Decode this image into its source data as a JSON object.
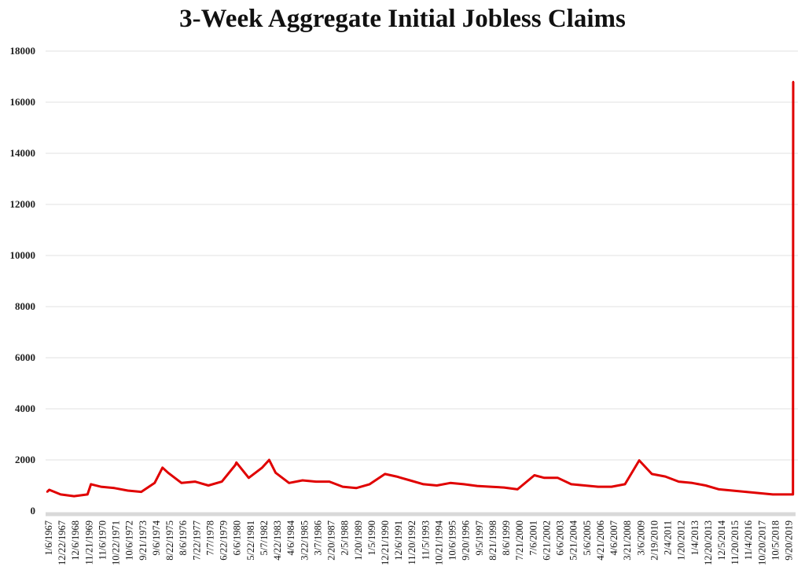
{
  "chart_data": {
    "type": "line",
    "title": "3-Week Aggregate Initial Jobless Claims",
    "xlabel": "",
    "ylabel": "",
    "ylim": [
      0,
      18000
    ],
    "yticks": [
      0,
      2000,
      4000,
      6000,
      8000,
      10000,
      12000,
      14000,
      16000,
      18000
    ],
    "grid": true,
    "legend": "none",
    "line_color": "#e00000",
    "xtick_labels": [
      "1/6/1967",
      "12/22/1967",
      "12/6/1968",
      "11/21/1969",
      "11/6/1970",
      "10/22/1971",
      "10/6/1972",
      "9/21/1973",
      "9/6/1974",
      "8/22/1975",
      "8/6/1976",
      "7/22/1977",
      "7/7/1978",
      "6/22/1979",
      "6/6/1980",
      "5/22/1981",
      "5/7/1982",
      "4/22/1983",
      "4/6/1984",
      "3/22/1985",
      "3/7/1986",
      "2/20/1987",
      "2/5/1988",
      "1/20/1989",
      "1/5/1990",
      "12/21/1990",
      "12/6/1991",
      "11/20/1992",
      "11/5/1993",
      "10/21/1994",
      "10/6/1995",
      "9/20/1996",
      "9/5/1997",
      "8/21/1998",
      "8/6/1999",
      "7/21/2000",
      "7/6/2001",
      "6/21/2002",
      "6/6/2003",
      "5/21/2004",
      "5/6/2005",
      "4/21/2006",
      "4/6/2007",
      "3/21/2008",
      "3/6/2009",
      "2/19/2010",
      "2/4/2011",
      "1/20/2012",
      "1/4/2013",
      "12/20/2013",
      "12/5/2014",
      "11/20/2015",
      "11/4/2016",
      "10/20/2017",
      "10/5/2018",
      "9/20/2019"
    ],
    "x": [
      "1/6/1967",
      "3/3/1967",
      "12/22/1967",
      "12/6/1968",
      "11/21/1969",
      "2/20/1970",
      "11/6/1970",
      "10/22/1971",
      "10/6/1972",
      "9/21/1973",
      "9/6/1974",
      "3/28/1975",
      "8/22/1975",
      "8/6/1976",
      "7/22/1977",
      "7/7/1978",
      "6/22/1979",
      "6/6/1980",
      "7/4/1980",
      "5/22/1981",
      "5/7/1982",
      "11/5/1982",
      "4/22/1983",
      "4/6/1984",
      "3/22/1985",
      "3/7/1986",
      "2/20/1987",
      "2/5/1988",
      "1/20/1989",
      "1/5/1990",
      "2/8/1991",
      "12/6/1991",
      "11/20/1992",
      "11/5/1993",
      "10/21/1994",
      "10/6/1995",
      "9/20/1996",
      "9/5/1997",
      "8/21/1998",
      "8/6/1999",
      "7/21/2000",
      "10/5/2001",
      "6/21/2002",
      "6/6/2003",
      "5/21/2004",
      "5/6/2005",
      "4/21/2006",
      "4/6/2007",
      "3/21/2008",
      "3/27/2009",
      "2/19/2010",
      "2/4/2011",
      "1/20/2012",
      "1/4/2013",
      "12/20/2013",
      "12/5/2014",
      "11/20/2015",
      "11/4/2016",
      "10/20/2017",
      "10/5/2018",
      "9/20/2019",
      "3/13/2020",
      "3/20/2020"
    ],
    "values": [
      750,
      830,
      650,
      580,
      650,
      1050,
      950,
      900,
      800,
      750,
      1100,
      1700,
      1500,
      1100,
      1150,
      1000,
      1150,
      1800,
      1900,
      1300,
      1700,
      2000,
      1500,
      1100,
      1200,
      1150,
      1150,
      950,
      900,
      1050,
      1450,
      1350,
      1200,
      1050,
      1000,
      1100,
      1050,
      980,
      950,
      920,
      850,
      1400,
      1300,
      1300,
      1050,
      1000,
      950,
      950,
      1050,
      1980,
      1450,
      1350,
      1150,
      1100,
      1000,
      850,
      800,
      750,
      700,
      650,
      650,
      650,
      16800
    ]
  }
}
